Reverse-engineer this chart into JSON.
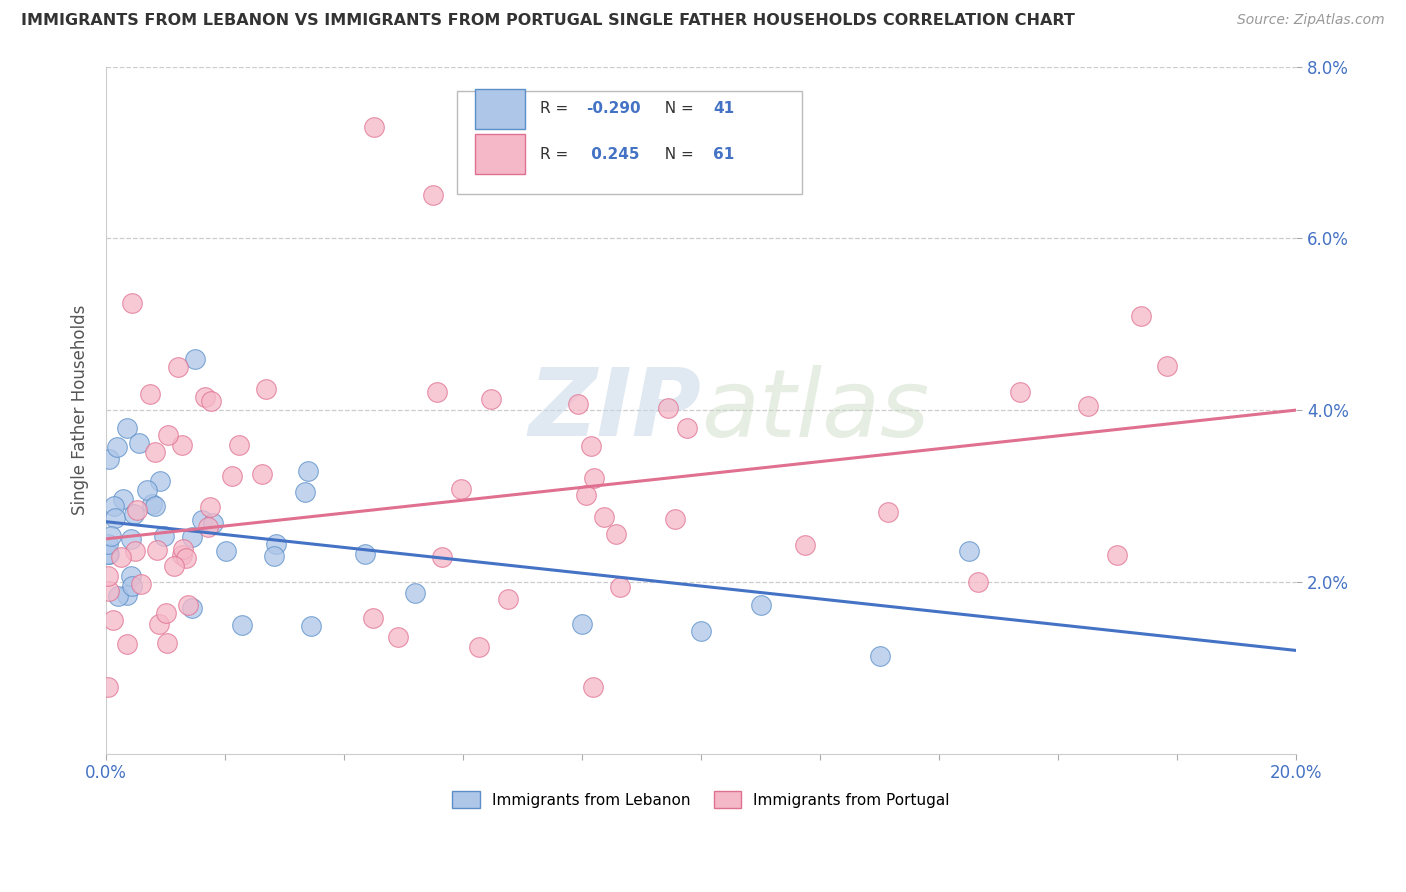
{
  "title": "IMMIGRANTS FROM LEBANON VS IMMIGRANTS FROM PORTUGAL SINGLE FATHER HOUSEHOLDS CORRELATION CHART",
  "source": "Source: ZipAtlas.com",
  "ylabel": "Single Father Households",
  "xlim": [
    0.0,
    0.2
  ],
  "ylim": [
    0.0,
    0.08
  ],
  "series1_label": "Immigrants from Lebanon",
  "series1_R": "-0.290",
  "series1_N": "41",
  "series1_color": "#aec6e8",
  "series1_edge_color": "#5b8fc9",
  "series1_line_color": "#4472c4",
  "series2_label": "Immigrants from Portugal",
  "series2_R": "0.245",
  "series2_N": "61",
  "series2_color": "#f5b8c8",
  "series2_edge_color": "#e07090",
  "series2_line_color": "#e07090",
  "watermark_text": "ZIPatlas",
  "background_color": "#ffffff",
  "grid_color": "#cccccc",
  "ytick_right": [
    0.02,
    0.04,
    0.06,
    0.08
  ],
  "xtick_labels_show": [
    0.0,
    0.2
  ],
  "legend_R1": "R = -0.290  N = 41",
  "legend_R2": "R =  0.245  N = 61"
}
